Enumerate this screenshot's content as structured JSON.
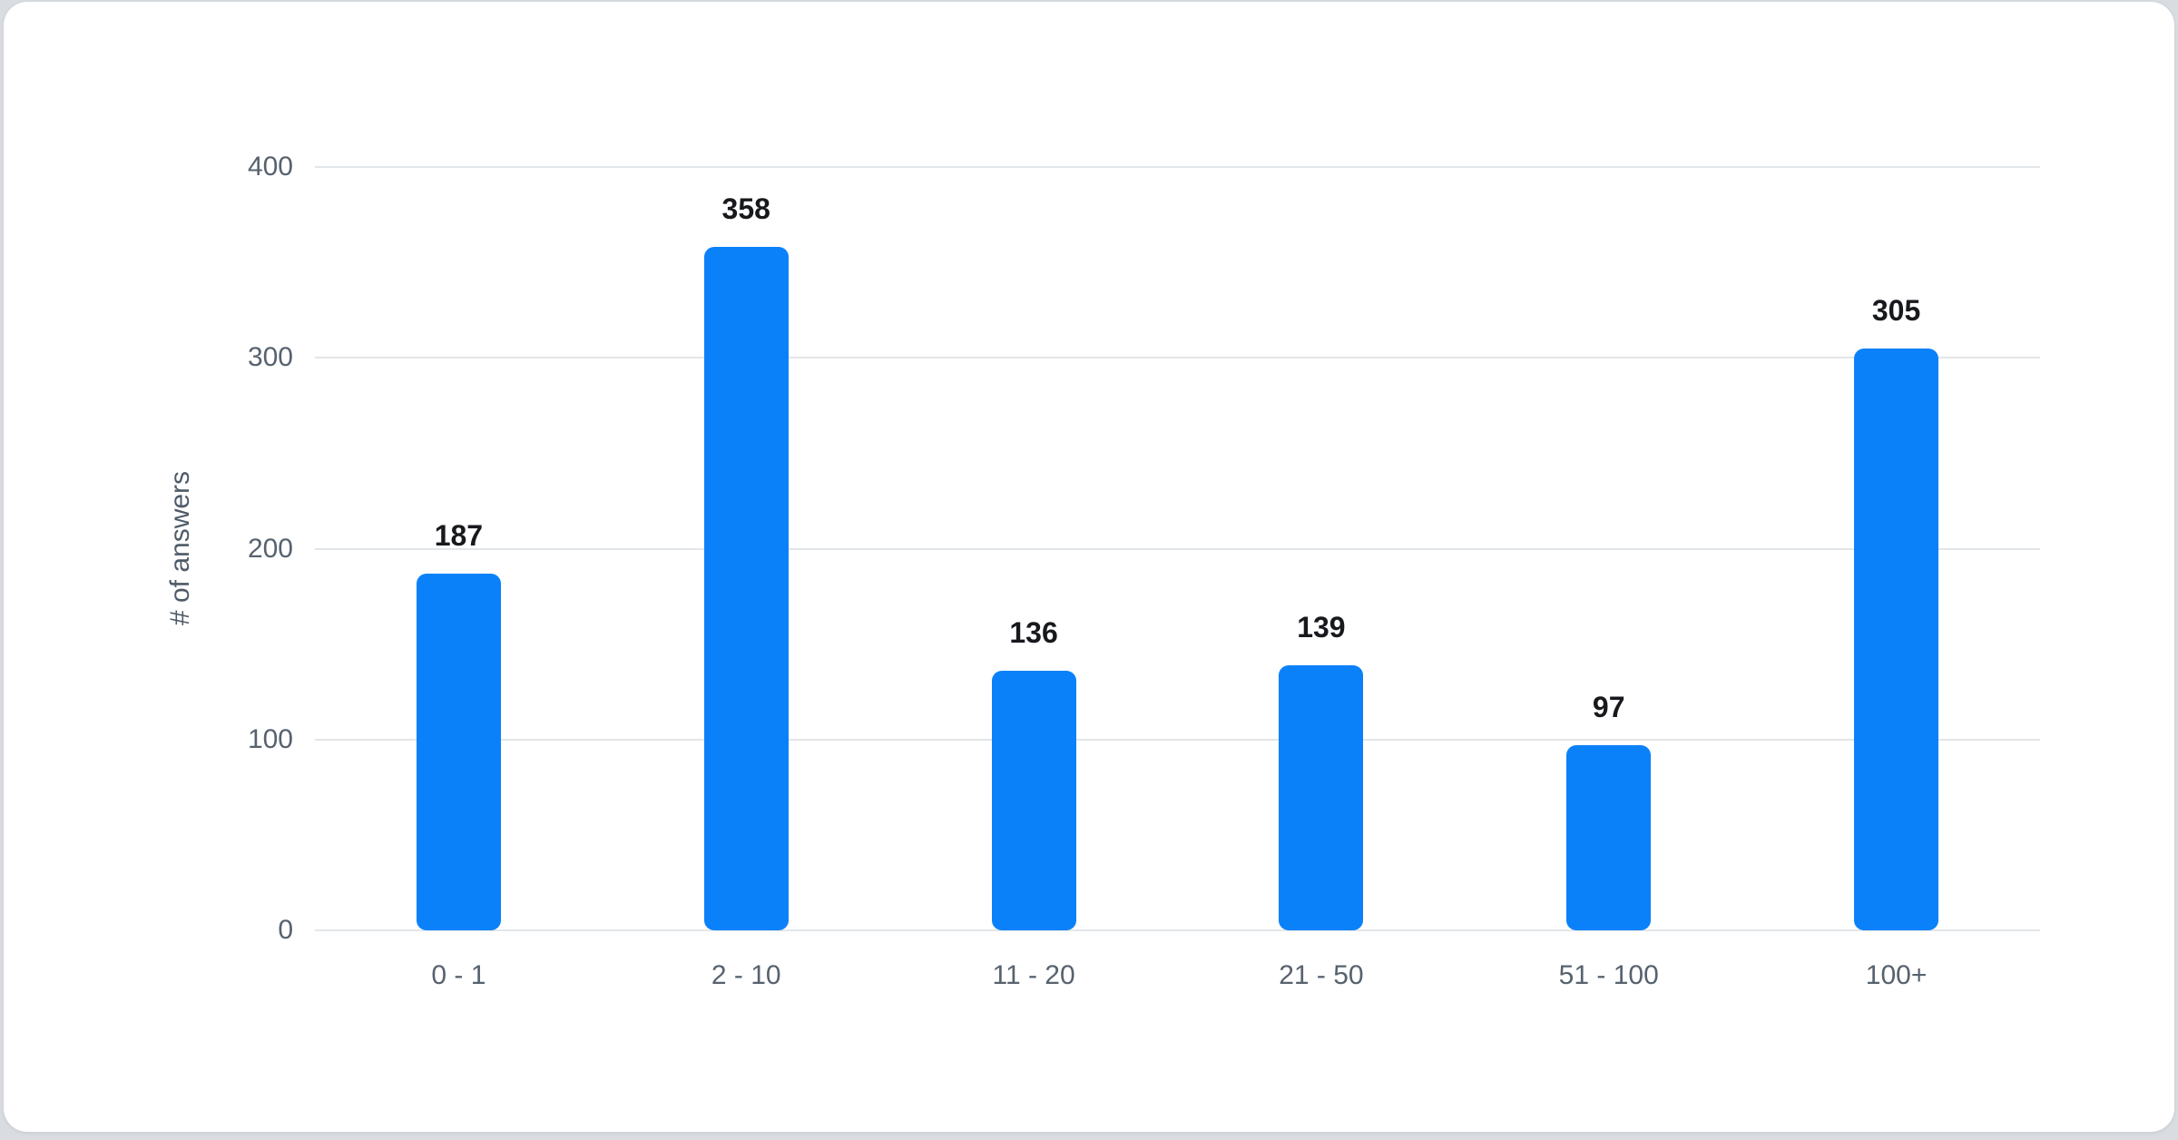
{
  "page": {
    "background_color": "#d9dde1",
    "card_background_color": "#ffffff"
  },
  "chart_data": {
    "type": "bar",
    "categories": [
      "0 - 1",
      "2 - 10",
      "11 - 20",
      "21 - 50",
      "51 - 100",
      "100+"
    ],
    "values": [
      187,
      358,
      136,
      139,
      97,
      305
    ],
    "title": "",
    "xlabel": "",
    "ylabel": "# of answers",
    "ylim": [
      0,
      400
    ],
    "yticks": [
      0,
      100,
      200,
      300,
      400
    ],
    "grid": true,
    "legend": "none",
    "value_labels_shown": true,
    "bar_color": "#0b81f9",
    "value_label_color": "#17191d",
    "axis_text_color": "#57626e",
    "axis_title_color": "#4e5a66",
    "gridline_color": "#e3e6e9"
  }
}
